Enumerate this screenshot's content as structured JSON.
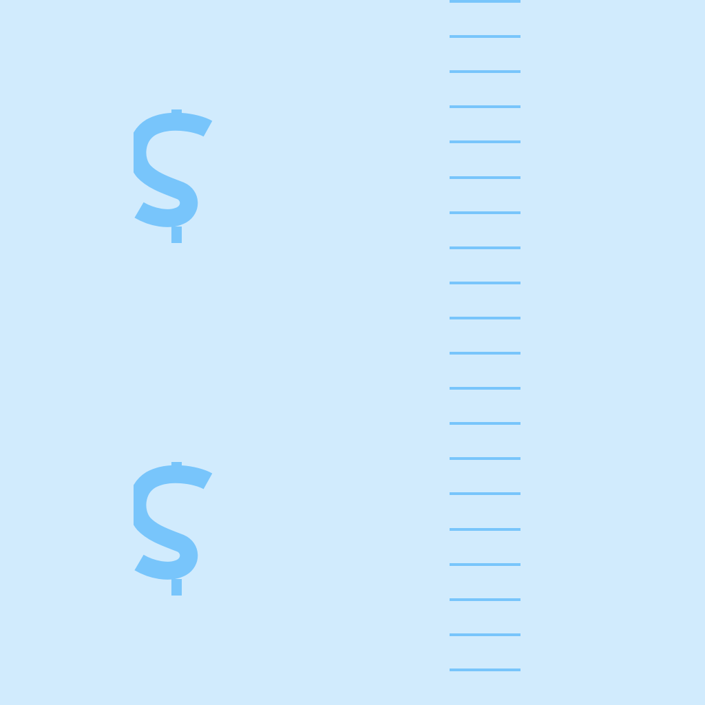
{
  "colors": {
    "background": "#D1EBFD",
    "accent": "#78C5FB"
  },
  "symbols": [
    {
      "name": "dollar-sign-icon"
    },
    {
      "name": "dollar-sign-icon"
    }
  ],
  "ruler": {
    "tick_count": 20
  }
}
